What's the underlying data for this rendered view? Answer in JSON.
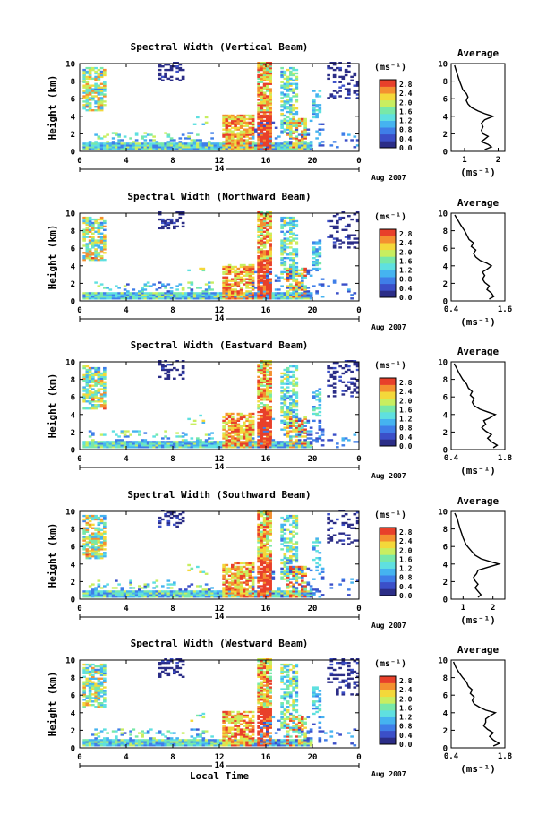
{
  "chart_data": [
    {
      "type": "heatmap",
      "title": "Spectral Width (Vertical Beam)",
      "ylabel": "Height (km)",
      "xlabel": "",
      "x_ticks": [
        "0",
        "4",
        "8",
        "12",
        "16",
        "20",
        "0"
      ],
      "y_ticks": [
        "0",
        "2",
        "4",
        "6",
        "8",
        "10"
      ],
      "xlim": [
        0,
        24
      ],
      "ylim": [
        0,
        10
      ],
      "date_center": "14",
      "date_label": "Aug 2007",
      "colorbar": {
        "unit": "(ms⁻¹)",
        "ticks": [
          "0.0",
          "0.4",
          "0.8",
          "1.2",
          "1.6",
          "2.0",
          "2.4",
          "2.8"
        ],
        "range": [
          0.0,
          3.0
        ]
      },
      "average": {
        "title": "Average",
        "xlabel": "(ms⁻¹)",
        "x_ticks": [
          "1",
          "2"
        ],
        "xlim": [
          0.6,
          2.2
        ],
        "y_ticks": [
          "0",
          "2",
          "4",
          "6",
          "8",
          "10"
        ],
        "ylim": [
          0,
          10
        ],
        "profile": [
          [
            1.6,
            0.2
          ],
          [
            1.8,
            0.5
          ],
          [
            1.7,
            0.8
          ],
          [
            1.5,
            1.1
          ],
          [
            1.6,
            1.4
          ],
          [
            1.7,
            1.7
          ],
          [
            1.55,
            2.0
          ],
          [
            1.5,
            2.4
          ],
          [
            1.55,
            2.8
          ],
          [
            1.5,
            3.2
          ],
          [
            1.6,
            3.6
          ],
          [
            1.85,
            4.0
          ],
          [
            1.6,
            4.3
          ],
          [
            1.4,
            4.6
          ],
          [
            1.2,
            5.0
          ],
          [
            1.1,
            5.4
          ],
          [
            1.05,
            5.8
          ],
          [
            1.1,
            6.2
          ],
          [
            1.05,
            6.6
          ],
          [
            0.95,
            7.0
          ],
          [
            0.9,
            7.5
          ],
          [
            0.85,
            8.0
          ],
          [
            0.8,
            8.6
          ],
          [
            0.75,
            9.2
          ],
          [
            0.7,
            9.8
          ]
        ]
      }
    },
    {
      "type": "heatmap",
      "title": "Spectral Width (Northward Beam)",
      "ylabel": "Height (km)",
      "xlabel": "",
      "x_ticks": [
        "0",
        "4",
        "8",
        "12",
        "16",
        "20",
        "0"
      ],
      "y_ticks": [
        "0",
        "2",
        "4",
        "6",
        "8",
        "10"
      ],
      "xlim": [
        0,
        24
      ],
      "ylim": [
        0,
        10
      ],
      "date_center": "14",
      "date_label": "Aug 2007",
      "colorbar": {
        "unit": "(ms⁻¹)",
        "ticks": [
          "0.0",
          "0.4",
          "0.8",
          "1.2",
          "1.6",
          "2.0",
          "2.4",
          "2.8"
        ],
        "range": [
          0.0,
          3.0
        ]
      },
      "average": {
        "title": "Average",
        "xlabel": "(ms⁻¹)",
        "x_ticks": [
          "0.4",
          "1.6"
        ],
        "xlim": [
          0.4,
          1.6
        ],
        "y_ticks": [
          "0",
          "2",
          "4",
          "6",
          "8",
          "10"
        ],
        "ylim": [
          0,
          10
        ],
        "profile": [
          [
            1.25,
            0.2
          ],
          [
            1.35,
            0.5
          ],
          [
            1.3,
            0.9
          ],
          [
            1.2,
            1.3
          ],
          [
            1.25,
            1.7
          ],
          [
            1.15,
            2.1
          ],
          [
            1.1,
            2.5
          ],
          [
            1.15,
            2.9
          ],
          [
            1.1,
            3.3
          ],
          [
            1.2,
            3.6
          ],
          [
            1.3,
            4.0
          ],
          [
            1.2,
            4.3
          ],
          [
            1.05,
            4.6
          ],
          [
            0.95,
            5.0
          ],
          [
            0.9,
            5.4
          ],
          [
            0.95,
            5.8
          ],
          [
            0.85,
            6.2
          ],
          [
            0.9,
            6.6
          ],
          [
            0.8,
            7.0
          ],
          [
            0.75,
            7.5
          ],
          [
            0.7,
            8.0
          ],
          [
            0.62,
            8.6
          ],
          [
            0.55,
            9.2
          ],
          [
            0.48,
            9.8
          ]
        ]
      }
    },
    {
      "type": "heatmap",
      "title": "Spectral Width (Eastward Beam)",
      "ylabel": "Height (km)",
      "xlabel": "",
      "x_ticks": [
        "0",
        "4",
        "8",
        "12",
        "16",
        "20",
        "0"
      ],
      "y_ticks": [
        "0",
        "2",
        "4",
        "6",
        "8",
        "10"
      ],
      "xlim": [
        0,
        24
      ],
      "ylim": [
        0,
        10
      ],
      "date_center": "14",
      "date_label": "Aug 2007",
      "colorbar": {
        "unit": "(ms⁻¹)",
        "ticks": [
          "0.0",
          "0.4",
          "0.8",
          "1.2",
          "1.6",
          "2.0",
          "2.4",
          "2.8"
        ],
        "range": [
          0.0,
          3.0
        ]
      },
      "average": {
        "title": "Average",
        "xlabel": "(ms⁻¹)",
        "x_ticks": [
          "0.4",
          "1.8"
        ],
        "xlim": [
          0.4,
          1.8
        ],
        "y_ticks": [
          "0",
          "2",
          "4",
          "6",
          "8",
          "10"
        ],
        "ylim": [
          0,
          10
        ],
        "profile": [
          [
            1.5,
            0.2
          ],
          [
            1.6,
            0.5
          ],
          [
            1.45,
            0.9
          ],
          [
            1.35,
            1.3
          ],
          [
            1.45,
            1.7
          ],
          [
            1.3,
            2.1
          ],
          [
            1.2,
            2.5
          ],
          [
            1.3,
            2.9
          ],
          [
            1.25,
            3.3
          ],
          [
            1.4,
            3.6
          ],
          [
            1.55,
            4.0
          ],
          [
            1.35,
            4.3
          ],
          [
            1.15,
            4.6
          ],
          [
            1.0,
            5.0
          ],
          [
            0.95,
            5.4
          ],
          [
            1.0,
            5.8
          ],
          [
            0.9,
            6.2
          ],
          [
            0.95,
            6.6
          ],
          [
            0.85,
            7.0
          ],
          [
            0.8,
            7.5
          ],
          [
            0.7,
            8.0
          ],
          [
            0.62,
            8.6
          ],
          [
            0.55,
            9.2
          ],
          [
            0.48,
            9.8
          ]
        ]
      }
    },
    {
      "type": "heatmap",
      "title": "Spectral Width (Southward Beam)",
      "ylabel": "Height (km)",
      "xlabel": "",
      "x_ticks": [
        "0",
        "4",
        "8",
        "12",
        "16",
        "20",
        "0"
      ],
      "y_ticks": [
        "0",
        "2",
        "4",
        "6",
        "8",
        "10"
      ],
      "xlim": [
        0,
        24
      ],
      "ylim": [
        0,
        10
      ],
      "date_center": "14",
      "date_label": "Aug 2007",
      "colorbar": {
        "unit": "(ms⁻¹)",
        "ticks": [
          "0.0",
          "0.4",
          "0.8",
          "1.2",
          "1.6",
          "2.0",
          "2.4",
          "2.8"
        ],
        "range": [
          0.0,
          3.0
        ]
      },
      "average": {
        "title": "Average",
        "xlabel": "(ms⁻¹)",
        "x_ticks": [
          "1",
          "2"
        ],
        "xlim": [
          0.6,
          2.4
        ],
        "y_ticks": [
          "0",
          "2",
          "4",
          "6",
          "8",
          "10"
        ],
        "ylim": [
          0,
          10
        ],
        "profile": [
          [
            1.5,
            0.2
          ],
          [
            1.6,
            0.5
          ],
          [
            1.5,
            0.9
          ],
          [
            1.4,
            1.3
          ],
          [
            1.5,
            1.7
          ],
          [
            1.4,
            2.1
          ],
          [
            1.35,
            2.5
          ],
          [
            1.45,
            2.9
          ],
          [
            1.5,
            3.3
          ],
          [
            1.8,
            3.6
          ],
          [
            2.2,
            4.0
          ],
          [
            1.9,
            4.3
          ],
          [
            1.6,
            4.6
          ],
          [
            1.4,
            5.0
          ],
          [
            1.3,
            5.4
          ],
          [
            1.2,
            5.8
          ],
          [
            1.1,
            6.2
          ],
          [
            1.05,
            6.6
          ],
          [
            1.0,
            7.0
          ],
          [
            0.95,
            7.5
          ],
          [
            0.9,
            8.0
          ],
          [
            0.85,
            8.6
          ],
          [
            0.8,
            9.2
          ],
          [
            0.72,
            9.8
          ]
        ]
      }
    },
    {
      "type": "heatmap",
      "title": "Spectral Width (Westward Beam)",
      "ylabel": "Height (km)",
      "xlabel": "Local Time",
      "x_ticks": [
        "0",
        "4",
        "8",
        "12",
        "16",
        "20",
        "0"
      ],
      "y_ticks": [
        "0",
        "2",
        "4",
        "6",
        "8",
        "10"
      ],
      "xlim": [
        0,
        24
      ],
      "ylim": [
        0,
        10
      ],
      "date_center": "14",
      "date_label": "Aug 2007",
      "colorbar": {
        "unit": "(ms⁻¹)",
        "ticks": [
          "0.0",
          "0.4",
          "0.8",
          "1.2",
          "1.6",
          "2.0",
          "2.4",
          "2.8"
        ],
        "range": [
          0.0,
          3.0
        ]
      },
      "average": {
        "title": "Average",
        "xlabel": "(ms⁻¹)",
        "x_ticks": [
          "0.4",
          "1.8"
        ],
        "xlim": [
          0.4,
          1.8
        ],
        "y_ticks": [
          "0",
          "2",
          "4",
          "6",
          "8",
          "10"
        ],
        "ylim": [
          0,
          10
        ],
        "profile": [
          [
            1.5,
            0.2
          ],
          [
            1.65,
            0.5
          ],
          [
            1.5,
            0.9
          ],
          [
            1.4,
            1.3
          ],
          [
            1.5,
            1.7
          ],
          [
            1.35,
            2.1
          ],
          [
            1.25,
            2.5
          ],
          [
            1.3,
            2.9
          ],
          [
            1.3,
            3.3
          ],
          [
            1.4,
            3.6
          ],
          [
            1.55,
            4.0
          ],
          [
            1.3,
            4.3
          ],
          [
            1.15,
            4.6
          ],
          [
            1.0,
            5.0
          ],
          [
            0.95,
            5.4
          ],
          [
            1.0,
            5.8
          ],
          [
            0.9,
            6.2
          ],
          [
            0.95,
            6.6
          ],
          [
            0.85,
            7.0
          ],
          [
            0.8,
            7.5
          ],
          [
            0.7,
            8.0
          ],
          [
            0.6,
            8.6
          ],
          [
            0.52,
            9.2
          ],
          [
            0.46,
            9.8
          ]
        ]
      }
    }
  ]
}
